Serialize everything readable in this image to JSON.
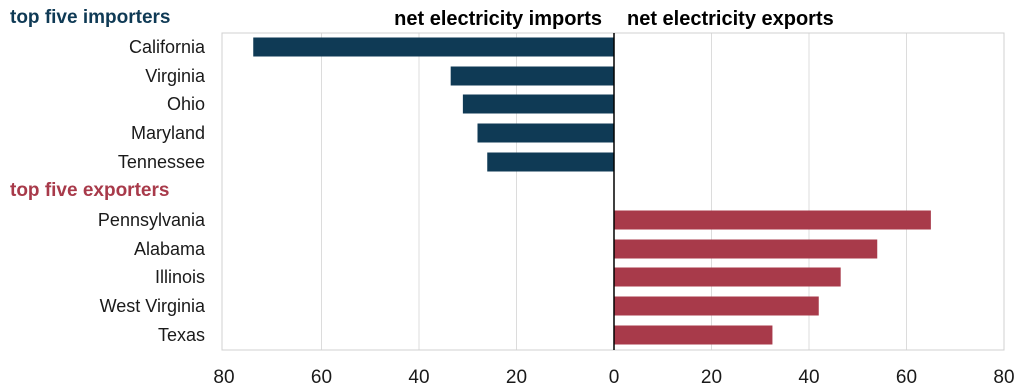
{
  "chart_data": {
    "type": "bar",
    "orientation": "horizontal-diverging",
    "colors": {
      "imports": "#0f3a55",
      "exports": "#a83a4a",
      "grid": "#dcdcdc",
      "axis": "#000000"
    },
    "side_titles": {
      "left": "net electricity imports",
      "right": "net electricity exports"
    },
    "groups": [
      {
        "header": "top five importers",
        "direction": "imports",
        "categories": [
          "California",
          "Virginia",
          "Ohio",
          "Maryland",
          "Tennessee"
        ],
        "values": [
          74,
          33.5,
          31,
          28,
          26
        ]
      },
      {
        "header": "top five exporters",
        "direction": "exports",
        "categories": [
          "Pennsylvania",
          "Alabama",
          "Illinois",
          "West Virginia",
          "Texas"
        ],
        "values": [
          65,
          54,
          46.5,
          42,
          32.5
        ]
      }
    ],
    "x_ticks": [
      "80",
      "60",
      "40",
      "20",
      "0",
      "20",
      "40",
      "60",
      "80"
    ],
    "xlim": [
      -80,
      80
    ],
    "grid": true
  }
}
